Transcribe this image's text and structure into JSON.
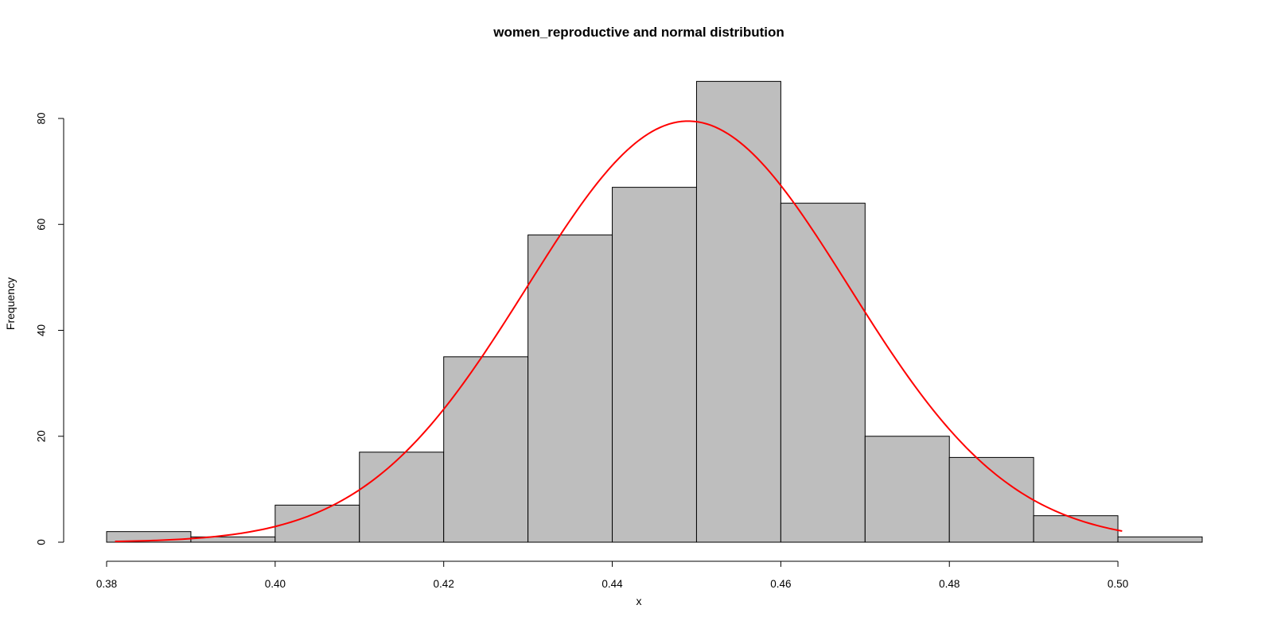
{
  "chart_data": {
    "type": "bar",
    "subtype": "histogram",
    "title": "women_reproductive and normal distribution",
    "xlabel": "x",
    "ylabel": "Frequency",
    "xlim": [
      0.38,
      0.51
    ],
    "ylim": [
      0,
      87
    ],
    "x_ticks": [
      "0.38",
      "0.40",
      "0.42",
      "0.44",
      "0.46",
      "0.48",
      "0.50"
    ],
    "y_ticks": [
      "0",
      "20",
      "40",
      "60",
      "80"
    ],
    "bins": [
      {
        "from": 0.38,
        "to": 0.39,
        "count": 2
      },
      {
        "from": 0.39,
        "to": 0.4,
        "count": 1
      },
      {
        "from": 0.4,
        "to": 0.41,
        "count": 7
      },
      {
        "from": 0.41,
        "to": 0.42,
        "count": 17
      },
      {
        "from": 0.42,
        "to": 0.43,
        "count": 35
      },
      {
        "from": 0.43,
        "to": 0.44,
        "count": 58
      },
      {
        "from": 0.44,
        "to": 0.45,
        "count": 67
      },
      {
        "from": 0.45,
        "to": 0.46,
        "count": 87
      },
      {
        "from": 0.46,
        "to": 0.47,
        "count": 64
      },
      {
        "from": 0.47,
        "to": 0.48,
        "count": 20
      },
      {
        "from": 0.48,
        "to": 0.49,
        "count": 16
      },
      {
        "from": 0.49,
        "to": 0.5,
        "count": 5
      },
      {
        "from": 0.5,
        "to": 0.51,
        "count": 1
      }
    ],
    "normal_curve": {
      "mean": 0.449,
      "sd": 0.0191,
      "peak": 79.5,
      "x_range": [
        0.381,
        0.5005
      ]
    },
    "grid": false,
    "colors": {
      "bar_fill": "#bebebe",
      "bar_stroke": "#000000",
      "curve": "#ff0000",
      "axis": "#000000"
    }
  }
}
